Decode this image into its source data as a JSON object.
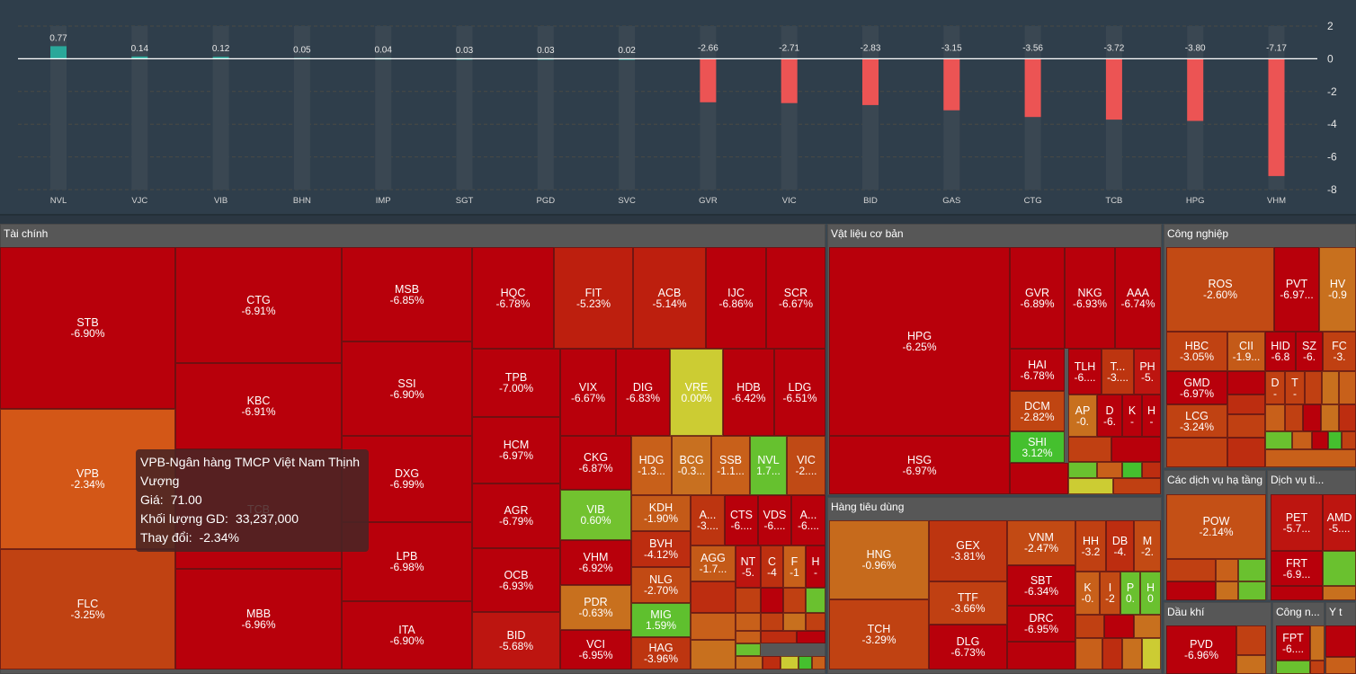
{
  "chart_data": {
    "type": "bar",
    "title": "",
    "xlabel": "",
    "ylabel": "",
    "ylim": [
      -8,
      2
    ],
    "yticks": [
      2,
      0,
      -2,
      -4,
      -6,
      -8
    ],
    "grid": true,
    "categories": [
      "NVL",
      "VJC",
      "VIB",
      "BHN",
      "IMP",
      "SGT",
      "PGD",
      "SVC",
      "GVR",
      "VIC",
      "BID",
      "GAS",
      "CTG",
      "TCB",
      "HPG",
      "VHM"
    ],
    "values": [
      0.77,
      0.14,
      0.12,
      0.05,
      0.04,
      0.03,
      0.03,
      0.02,
      -2.66,
      -2.71,
      -2.83,
      -3.15,
      -3.56,
      -3.72,
      -3.8,
      -7.17
    ],
    "value_labels": [
      "0.77",
      "0.14",
      "0.12",
      "0.05",
      "0.04",
      "0.03",
      "0.03",
      "0.02",
      "-2.66",
      "-2.71",
      "-2.83",
      "-3.15",
      "-3.56",
      "-3.72",
      "-3.80",
      "-7.17"
    ],
    "colors": {
      "positive": "#2aa89a",
      "negative": "#ec5454",
      "zero_line": "#ffffff",
      "background": "#2f3e4b"
    }
  },
  "treemap": {
    "groups": [
      {
        "title": "Tài chính"
      },
      {
        "title": "Vật liệu cơ bản"
      },
      {
        "title": "Hàng tiêu dùng"
      },
      {
        "title": "Công nghiệp"
      },
      {
        "title": "Các dịch vụ hạ tầng"
      },
      {
        "title": "Dịch vụ ti..."
      },
      {
        "title": "Dầu khí"
      },
      {
        "title": "Công n..."
      },
      {
        "title": "Y t"
      }
    ],
    "stocks": [
      {
        "sym": "STB",
        "chg": "-6.90%",
        "color": "#b8000b"
      },
      {
        "sym": "VPB",
        "chg": "-2.34%",
        "color": "#d35717"
      },
      {
        "sym": "FLC",
        "chg": "-3.25%",
        "color": "#c04212"
      },
      {
        "sym": "CTG",
        "chg": "-6.91%",
        "color": "#b8000b"
      },
      {
        "sym": "KBC",
        "chg": "-6.91%",
        "color": "#b8000b"
      },
      {
        "sym": "TCB",
        "chg": "",
        "color": "#b8000b"
      },
      {
        "sym": "MBB",
        "chg": "-6.96%",
        "color": "#b8000b"
      },
      {
        "sym": "MSB",
        "chg": "-6.85%",
        "color": "#b8000b"
      },
      {
        "sym": "SSI",
        "chg": "-6.90%",
        "color": "#b8000b"
      },
      {
        "sym": "DXG",
        "chg": "-6.99%",
        "color": "#b8000b"
      },
      {
        "sym": "LPB",
        "chg": "-6.98%",
        "color": "#b8000b"
      },
      {
        "sym": "ITA",
        "chg": "-6.90%",
        "color": "#b8000b"
      },
      {
        "sym": "HQC",
        "chg": "-6.78%",
        "color": "#b8000b"
      },
      {
        "sym": "FIT",
        "chg": "-5.23%",
        "color": "#bd1f0e"
      },
      {
        "sym": "ACB",
        "chg": "-5.14%",
        "color": "#bd1f0e"
      },
      {
        "sym": "IJC",
        "chg": "-6.86%",
        "color": "#b8000b"
      },
      {
        "sym": "SCR",
        "chg": "-6.67%",
        "color": "#b8000b"
      },
      {
        "sym": "TPB",
        "chg": "-7.00%",
        "color": "#b8000b"
      },
      {
        "sym": "HCM",
        "chg": "-6.97%",
        "color": "#b8000b"
      },
      {
        "sym": "AGR",
        "chg": "-6.79%",
        "color": "#b8000b"
      },
      {
        "sym": "OCB",
        "chg": "-6.93%",
        "color": "#b8000b"
      },
      {
        "sym": "BID",
        "chg": "-5.68%",
        "color": "#bd1510"
      },
      {
        "sym": "VIX",
        "chg": "-6.67%",
        "color": "#b8000b"
      },
      {
        "sym": "DIG",
        "chg": "-6.83%",
        "color": "#b8000b"
      },
      {
        "sym": "VRE",
        "chg": "0.00%",
        "color": "#cccc33"
      },
      {
        "sym": "HDB",
        "chg": "-6.42%",
        "color": "#b8000b"
      },
      {
        "sym": "LDG",
        "chg": "-6.51%",
        "color": "#b8000b"
      },
      {
        "sym": "CKG",
        "chg": "-6.87%",
        "color": "#b8000b"
      },
      {
        "sym": "HDG",
        "chg": "-1.3...",
        "color": "#c8601a"
      },
      {
        "sym": "BCG",
        "chg": "-0.3...",
        "color": "#c87020"
      },
      {
        "sym": "SSB",
        "chg": "-1.1...",
        "color": "#c8601a"
      },
      {
        "sym": "NVL",
        "chg": "1.7...",
        "color": "#66c12f"
      },
      {
        "sym": "VIC",
        "chg": "-2....",
        "color": "#c04a15"
      },
      {
        "sym": "VIB",
        "chg": "0.60%",
        "color": "#72c22f"
      },
      {
        "sym": "VHM",
        "chg": "-6.92%",
        "color": "#b8000b"
      },
      {
        "sym": "PDR",
        "chg": "-0.63%",
        "color": "#c8701e"
      },
      {
        "sym": "VCI",
        "chg": "-6.95%",
        "color": "#b8000b"
      },
      {
        "sym": "KDH",
        "chg": "-1.90%",
        "color": "#c45a18"
      },
      {
        "sym": "BVH",
        "chg": "-4.12%",
        "color": "#bd2d10"
      },
      {
        "sym": "NLG",
        "chg": "-2.70%",
        "color": "#c24a14"
      },
      {
        "sym": "MIG",
        "chg": "1.59%",
        "color": "#5fc02e"
      },
      {
        "sym": "HAG",
        "chg": "-3.96%",
        "color": "#bd3510"
      },
      {
        "sym": "A...",
        "chg": "-3....",
        "color": "#bd3510"
      },
      {
        "sym": "CTS",
        "chg": "-6....",
        "color": "#b8000b"
      },
      {
        "sym": "VDS",
        "chg": "-6....",
        "color": "#b8000b"
      },
      {
        "sym": "A...",
        "chg": "-6....",
        "color": "#b8000b"
      },
      {
        "sym": "AGG",
        "chg": "-1.7...",
        "color": "#c45a18"
      },
      {
        "sym": "NT",
        "chg": "-5.",
        "color": "#bd1510"
      },
      {
        "sym": "C",
        "chg": "-4",
        "color": "#bd3010"
      },
      {
        "sym": "F",
        "chg": "-1",
        "color": "#c8601a"
      },
      {
        "sym": "H",
        "chg": "-",
        "color": "#b8000b"
      },
      {
        "sym": "HPG",
        "chg": "-6.25%",
        "color": "#b8000b"
      },
      {
        "sym": "HSG",
        "chg": "-6.97%",
        "color": "#b8000b"
      },
      {
        "sym": "GVR",
        "chg": "-6.89%",
        "color": "#b8000b"
      },
      {
        "sym": "NKG",
        "chg": "-6.93%",
        "color": "#b8000b"
      },
      {
        "sym": "AAA",
        "chg": "-6.74%",
        "color": "#b8000b"
      },
      {
        "sym": "HAI",
        "chg": "-6.78%",
        "color": "#b8000b"
      },
      {
        "sym": "TLH",
        "chg": "-6....",
        "color": "#b8000b"
      },
      {
        "sym": "T...",
        "chg": "-3....",
        "color": "#bd3510"
      },
      {
        "sym": "PH",
        "chg": "-5.",
        "color": "#bd1510"
      },
      {
        "sym": "DCM",
        "chg": "-2.82%",
        "color": "#c04512"
      },
      {
        "sym": "AP",
        "chg": "-0.",
        "color": "#c8701e"
      },
      {
        "sym": "D",
        "chg": "-6.",
        "color": "#b8000b"
      },
      {
        "sym": "K",
        "chg": "-",
        "color": "#b8000b"
      },
      {
        "sym": "H",
        "chg": "-",
        "color": "#b8000b"
      },
      {
        "sym": "SHI",
        "chg": "3.12%",
        "color": "#45c02e"
      },
      {
        "sym": "HNG",
        "chg": "-0.96%",
        "color": "#c66a1c"
      },
      {
        "sym": "TCH",
        "chg": "-3.29%",
        "color": "#c04212"
      },
      {
        "sym": "GEX",
        "chg": "-3.81%",
        "color": "#bd3510"
      },
      {
        "sym": "TTF",
        "chg": "-3.66%",
        "color": "#c04012"
      },
      {
        "sym": "DLG",
        "chg": "-6.73%",
        "color": "#b8000b"
      },
      {
        "sym": "VNM",
        "chg": "-2.47%",
        "color": "#c24a14"
      },
      {
        "sym": "SBT",
        "chg": "-6.34%",
        "color": "#b8000b"
      },
      {
        "sym": "DRC",
        "chg": "-6.95%",
        "color": "#b8000b"
      },
      {
        "sym": "HH",
        "chg": "-3.2",
        "color": "#c04012"
      },
      {
        "sym": "DB",
        "chg": "-4.",
        "color": "#bd2d10"
      },
      {
        "sym": "M",
        "chg": "-2.",
        "color": "#c24a14"
      },
      {
        "sym": "K",
        "chg": "-0.",
        "color": "#c8601a"
      },
      {
        "sym": "I",
        "chg": "-2",
        "color": "#c24a14"
      },
      {
        "sym": "P",
        "chg": "0.",
        "color": "#6ac12f"
      },
      {
        "sym": "H",
        "chg": "0",
        "color": "#6ac12f"
      },
      {
        "sym": "ROS",
        "chg": "-2.60%",
        "color": "#c24a14"
      },
      {
        "sym": "PVT",
        "chg": "-6.97...",
        "color": "#b8000b"
      },
      {
        "sym": "HV",
        "chg": "-0.9",
        "color": "#c8701e"
      },
      {
        "sym": "HBC",
        "chg": "-3.05%",
        "color": "#c04212"
      },
      {
        "sym": "CII",
        "chg": "-1.9...",
        "color": "#c45a18"
      },
      {
        "sym": "HID",
        "chg": "-6.8",
        "color": "#b8000b"
      },
      {
        "sym": "SZ",
        "chg": "-6.",
        "color": "#b8000b"
      },
      {
        "sym": "FC",
        "chg": "-3.",
        "color": "#c04012"
      },
      {
        "sym": "GMD",
        "chg": "-6.97%",
        "color": "#b8000b"
      },
      {
        "sym": "LCG",
        "chg": "-3.24%",
        "color": "#c04212"
      },
      {
        "sym": "D",
        "chg": "-",
        "color": "#c04012"
      },
      {
        "sym": "T",
        "chg": "-",
        "color": "#c04012"
      },
      {
        "sym": "POW",
        "chg": "-2.14%",
        "color": "#c45016"
      },
      {
        "sym": "PET",
        "chg": "-5.7...",
        "color": "#bd1510"
      },
      {
        "sym": "AMD",
        "chg": "-5....",
        "color": "#bd1510"
      },
      {
        "sym": "FRT",
        "chg": "-6.9...",
        "color": "#b8000b"
      },
      {
        "sym": "PVD",
        "chg": "-6.96%",
        "color": "#b8000b"
      },
      {
        "sym": "FPT",
        "chg": "-6....",
        "color": "#b8000b"
      }
    ],
    "filler_colors": [
      "#bd2d10",
      "#c04012",
      "#c8601a",
      "#b8000b",
      "#6ac12f",
      "#c8701e",
      "#45c02e",
      "#cccc33"
    ]
  },
  "tooltip": {
    "title": "VPB-Ngân hàng TMCP Việt Nam Thịnh Vượng",
    "price_label": "Giá:",
    "price_value": "71.00",
    "volume_label": "Khối lượng GD:",
    "volume_value": "33,237,000",
    "change_label": "Thay đổi:",
    "change_value": "-2.34%"
  }
}
